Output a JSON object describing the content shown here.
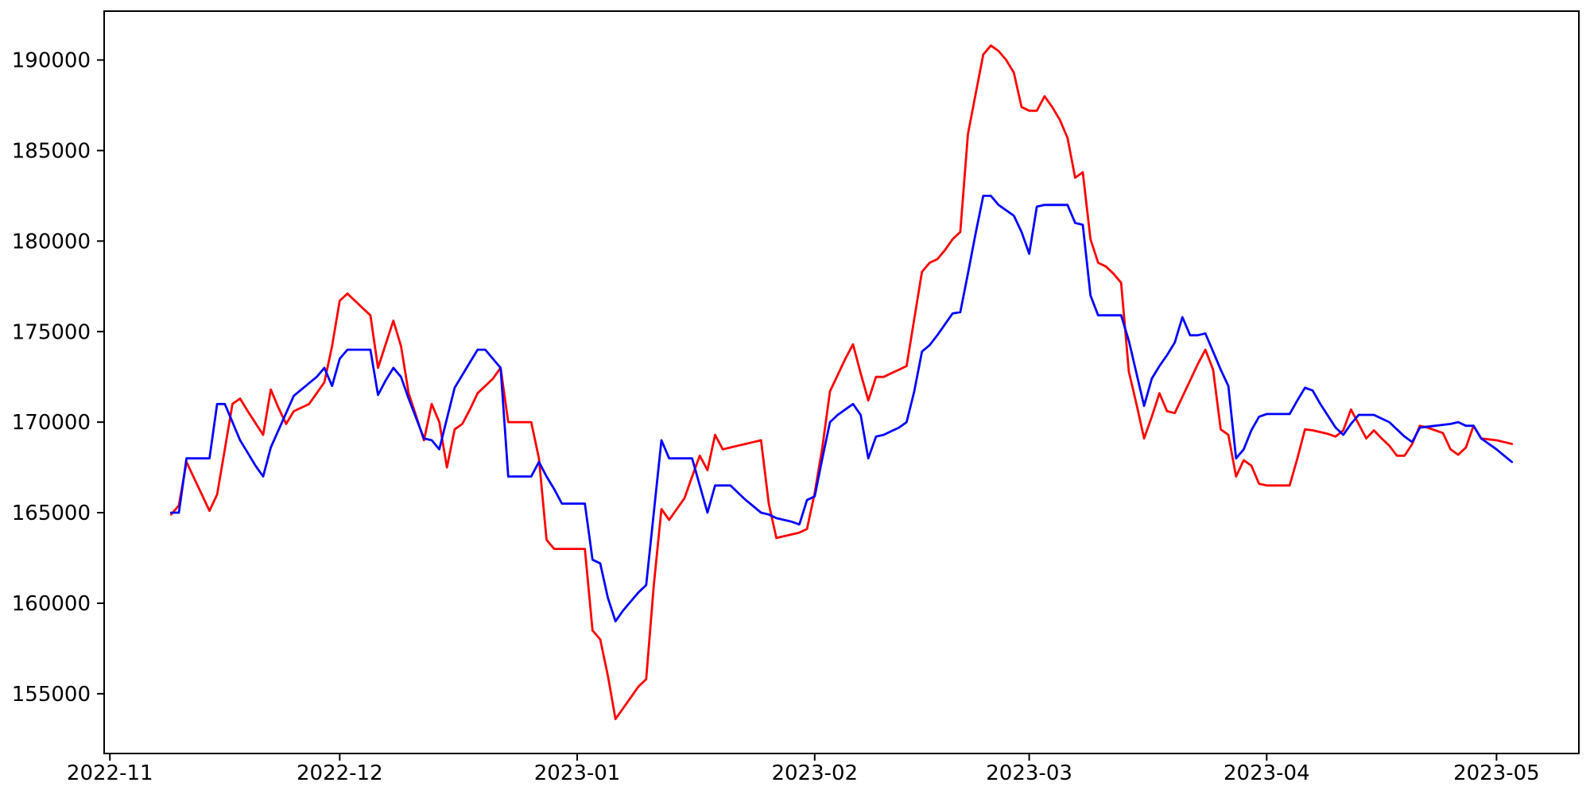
{
  "figure": {
    "background": "#ffffff",
    "description": "Line chart comparing two daily time series from November 2022 through early May 2023"
  },
  "chart_data": {
    "type": "line",
    "title": "",
    "xlabel": "",
    "ylabel": "",
    "grid": false,
    "legend_position": "none",
    "axes": {
      "spine_color": "#000000",
      "tick_color": "#000000",
      "tick_label_color": "#000000"
    },
    "ylim": [
      151700,
      192700
    ],
    "xlim": {
      "start": "2022-10-31T06:00:00Z",
      "end": "2023-05-11T18:00:00Z"
    },
    "x_ticks": [
      {
        "date": "2022-11-01",
        "label": "2022-11"
      },
      {
        "date": "2022-12-01",
        "label": "2022-12"
      },
      {
        "date": "2023-01-01",
        "label": "2023-01"
      },
      {
        "date": "2023-02-01",
        "label": "2023-02"
      },
      {
        "date": "2023-03-01",
        "label": "2023-03"
      },
      {
        "date": "2023-04-01",
        "label": "2023-04"
      },
      {
        "date": "2023-05-01",
        "label": "2023-05"
      }
    ],
    "y_ticks": [
      {
        "value": 155000,
        "label": "155000"
      },
      {
        "value": 160000,
        "label": "160000"
      },
      {
        "value": 165000,
        "label": "165000"
      },
      {
        "value": 170000,
        "label": "170000"
      },
      {
        "value": 175000,
        "label": "175000"
      },
      {
        "value": 180000,
        "label": "180000"
      },
      {
        "value": 185000,
        "label": "185000"
      },
      {
        "value": 190000,
        "label": "190000"
      }
    ],
    "series": [
      {
        "name": "series-red",
        "color": "#ff0000",
        "start_date": "2022-11-09",
        "interval_days": 1,
        "values": [
          164900,
          165400,
          167800,
          166900,
          166000,
          165100,
          166000,
          168500,
          171000,
          171300,
          170600,
          169950,
          169300,
          171800,
          170800,
          169900,
          170600,
          170800,
          171000,
          171600,
          172200,
          174200,
          176700,
          177100,
          176700,
          176300,
          175900,
          173000,
          174300,
          175600,
          174200,
          171600,
          170300,
          169000,
          171000,
          170000,
          167500,
          169600,
          169900,
          170700,
          171600,
          172000,
          172400,
          173000,
          170000,
          170000,
          170000,
          170000,
          168000,
          163500,
          163000,
          163000,
          163000,
          163000,
          163000,
          158500,
          158000,
          156000,
          153600,
          154200,
          154800,
          155400,
          155800,
          161000,
          165200,
          164600,
          165200,
          165800,
          167000,
          168150,
          167350,
          169300,
          168500,
          168600,
          168700,
          168800,
          168900,
          169000,
          165500,
          163600,
          163700,
          163800,
          163900,
          164100,
          166100,
          168600,
          171700,
          172600,
          173500,
          174300,
          172700,
          171200,
          172500,
          172500,
          172700,
          172900,
          173100,
          175700,
          178300,
          178800,
          179000,
          179500,
          180100,
          180500,
          185900,
          188100,
          190300,
          190800,
          190500,
          190000,
          189300,
          187400,
          187200,
          187200,
          188000,
          187400,
          186700,
          185700,
          183500,
          183800,
          180100,
          178800,
          178600,
          178200,
          177700,
          172800,
          171000,
          169100,
          170300,
          171600,
          170600,
          170500,
          171400,
          172300,
          173200,
          174000,
          172900,
          169600,
          169300,
          167000,
          167900,
          167600,
          166600,
          166500,
          166500,
          166500,
          166500,
          168000,
          169600,
          169550,
          169450,
          169350,
          169200,
          169550,
          170700,
          169900,
          169100,
          169550,
          169100,
          168700,
          168150,
          168150,
          168800,
          169800,
          169700,
          169550,
          169400,
          168500,
          168200,
          168600,
          169800,
          169100,
          169050,
          169000,
          168900,
          168800
        ]
      },
      {
        "name": "series-blue",
        "color": "#0000ff",
        "start_date": "2022-11-09",
        "interval_days": 1,
        "values": [
          165000,
          165000,
          168000,
          168000,
          168000,
          168000,
          171000,
          171000,
          170000,
          169000,
          168300,
          167600,
          167000,
          168600,
          169550,
          170500,
          171450,
          171800,
          172150,
          172500,
          173000,
          172000,
          173500,
          174000,
          174000,
          174000,
          174000,
          171500,
          172300,
          173000,
          172500,
          171300,
          170200,
          169100,
          169000,
          168500,
          170200,
          171900,
          172600,
          173300,
          174000,
          174000,
          173500,
          173000,
          167000,
          167000,
          167000,
          167000,
          167800,
          167000,
          166300,
          165500,
          165500,
          165500,
          165500,
          162400,
          162200,
          160300,
          159000,
          159600,
          160100,
          160600,
          161000,
          165000,
          169000,
          168000,
          168000,
          168000,
          168000,
          166500,
          165000,
          166500,
          166500,
          166500,
          166100,
          165700,
          165350,
          165000,
          164900,
          164700,
          164600,
          164500,
          164350,
          165700,
          165900,
          168000,
          170000,
          170400,
          170700,
          171000,
          170400,
          168000,
          169200,
          169300,
          169500,
          169700,
          170000,
          171700,
          173900,
          174250,
          174800,
          175400,
          176000,
          176070,
          178200,
          180400,
          182500,
          182500,
          182000,
          181700,
          181400,
          180500,
          179300,
          181900,
          182000,
          182000,
          182000,
          182000,
          181000,
          180900,
          177000,
          175900,
          175900,
          175900,
          175900,
          174500,
          172700,
          170900,
          172400,
          173100,
          173700,
          174400,
          175800,
          174800,
          174800,
          174900,
          173900,
          172900,
          172000,
          168000,
          168500,
          169550,
          170300,
          170450,
          170450,
          170450,
          170450,
          171200,
          171900,
          171750,
          171000,
          170350,
          169700,
          169300,
          169900,
          170400,
          170400,
          170400,
          170200,
          170000,
          169600,
          169200,
          168900,
          169700,
          169750,
          169800,
          169850,
          169900,
          170000,
          169800,
          169800,
          169100,
          168800,
          168500,
          168150,
          167800
        ]
      }
    ]
  }
}
